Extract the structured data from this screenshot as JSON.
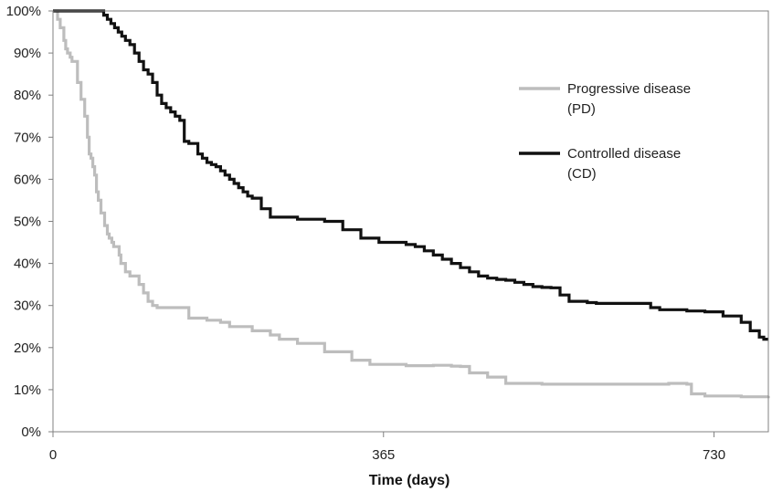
{
  "chart_data": {
    "type": "line",
    "step": true,
    "xlabel": "Time (days)",
    "ylabel": "",
    "xlim": [
      0,
      790
    ],
    "ylim": [
      0,
      100
    ],
    "xticks": [
      0,
      365,
      730
    ],
    "yticks": [
      0,
      10,
      20,
      30,
      40,
      50,
      60,
      70,
      80,
      90,
      100
    ],
    "ytick_labels": [
      "0%",
      "10%",
      "20%",
      "30%",
      "40%",
      "50%",
      "60%",
      "70%",
      "80%",
      "90%",
      "100%"
    ],
    "grid": false,
    "legend_position": "right",
    "colors": {
      "pd": "#bdbdbd",
      "cd": "#111111"
    },
    "series": [
      {
        "name": "Progressive disease (PD)",
        "name_lines": [
          "Progressive disease",
          "(PD)"
        ],
        "color": "#bdbdbd",
        "x": [
          0,
          5,
          8,
          12,
          14,
          16,
          19,
          21,
          23,
          27,
          31,
          35,
          38,
          40,
          42,
          44,
          46,
          48,
          50,
          53,
          57,
          60,
          62,
          65,
          67,
          70,
          73,
          75,
          80,
          85,
          95,
          100,
          105,
          110,
          115,
          120,
          128,
          150,
          170,
          185,
          195,
          210,
          220,
          240,
          250,
          270,
          300,
          330,
          350,
          365,
          390,
          420,
          440,
          450,
          460,
          480,
          500,
          540,
          600,
          650,
          680,
          700,
          705,
          720,
          760,
          790
        ],
        "y": [
          100,
          98,
          96,
          93,
          91,
          90,
          89,
          88,
          88,
          83,
          79,
          75,
          70,
          66,
          65,
          63,
          61,
          57,
          55,
          52,
          49,
          47,
          46,
          45,
          44,
          44,
          42,
          40,
          38,
          37,
          35,
          33,
          31,
          30,
          29.5,
          29.5,
          29.5,
          27,
          26.5,
          26,
          25,
          25,
          24,
          23,
          22,
          21,
          19,
          17,
          16,
          16,
          15.7,
          15.8,
          15.6,
          15.5,
          14,
          13,
          11.5,
          11.3,
          11.3,
          11.3,
          11.5,
          11.3,
          9,
          8.5,
          8.3,
          8.5
        ]
      },
      {
        "name": "Controlled disease (CD)",
        "name_lines": [
          "Controlled disease",
          "(CD)"
        ],
        "color": "#111111",
        "x": [
          0,
          52,
          56,
          60,
          64,
          68,
          72,
          76,
          80,
          85,
          90,
          95,
          100,
          105,
          110,
          115,
          120,
          125,
          130,
          135,
          140,
          145,
          150,
          155,
          160,
          165,
          170,
          175,
          180,
          185,
          190,
          195,
          200,
          205,
          210,
          215,
          220,
          230,
          240,
          250,
          260,
          265,
          270,
          275,
          280,
          285,
          290,
          300,
          320,
          340,
          360,
          380,
          390,
          400,
          410,
          420,
          430,
          440,
          450,
          460,
          470,
          480,
          490,
          500,
          510,
          520,
          530,
          540,
          550,
          560,
          570,
          580,
          590,
          600,
          610,
          620,
          630,
          640,
          650,
          660,
          670,
          680,
          700,
          720,
          740,
          760,
          770,
          780,
          785,
          790
        ],
        "y": [
          100,
          100,
          99,
          98,
          97,
          96,
          95,
          94,
          93,
          92,
          90,
          88,
          86,
          85,
          83,
          80,
          78,
          77,
          76,
          75,
          74,
          69,
          68.5,
          68.5,
          66,
          65,
          64,
          63.5,
          63,
          62,
          61,
          60,
          59,
          58,
          57,
          56,
          55.5,
          53,
          51,
          51,
          51,
          51,
          50.5,
          50.5,
          50.5,
          50.5,
          50.5,
          50,
          48,
          46,
          45,
          45,
          44.5,
          44,
          43,
          42,
          41,
          40,
          39,
          38,
          37,
          36.5,
          36.2,
          36,
          35.5,
          35,
          34.5,
          34.3,
          34.2,
          32.5,
          31,
          31,
          30.7,
          30.5,
          30.5,
          30.5,
          30.5,
          30.5,
          30.5,
          29.5,
          29,
          29,
          28.7,
          28.5,
          27.5,
          26,
          24,
          22.5,
          22,
          22
        ]
      }
    ]
  }
}
